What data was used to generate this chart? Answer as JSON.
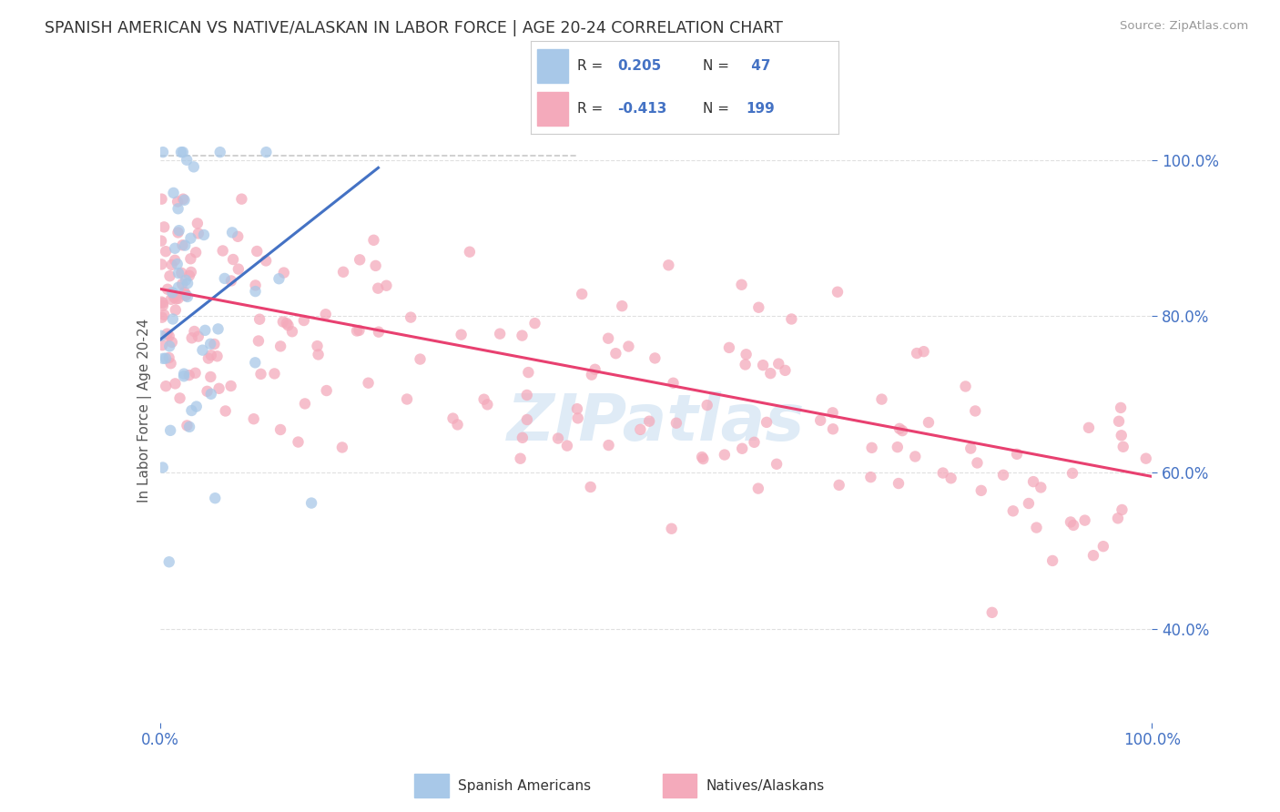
{
  "title": "SPANISH AMERICAN VS NATIVE/ALASKAN IN LABOR FORCE | AGE 20-24 CORRELATION CHART",
  "source": "Source: ZipAtlas.com",
  "ylabel": "In Labor Force | Age 20-24",
  "xlim": [
    0.0,
    1.0
  ],
  "ylim": [
    0.28,
    1.08
  ],
  "blue_color": "#A8C8E8",
  "pink_color": "#F4AABB",
  "trendline_blue": "#4472C4",
  "trendline_pink": "#E84070",
  "dashed_color": "#BBBBBB",
  "watermark": "ZIPatlas",
  "background_color": "#FFFFFF",
  "grid_color": "#DDDDDD",
  "tick_color": "#4472C4",
  "title_color": "#333333",
  "source_color": "#999999",
  "ylabel_color": "#555555",
  "blue_trendline_x": [
    0.0,
    0.22
  ],
  "blue_trendline_y": [
    0.77,
    0.99
  ],
  "pink_trendline_x": [
    0.0,
    1.0
  ],
  "pink_trendline_y": [
    0.835,
    0.595
  ],
  "dashed_line_x": [
    0.0,
    0.45
  ],
  "dashed_line_y": [
    1.005,
    1.005
  ],
  "yticks": [
    0.4,
    0.6,
    0.8,
    1.0
  ],
  "ytick_labels": [
    "40.0%",
    "60.0%",
    "80.0%",
    "100.0%"
  ],
  "xtick_labels": [
    "0.0%",
    "100.0%"
  ],
  "legend_r1": "R = ",
  "legend_v1": "0.205",
  "legend_n1_label": "N = ",
  "legend_n1": " 47",
  "legend_r2": "R = ",
  "legend_v2": "-0.413",
  "legend_n2_label": "N = ",
  "legend_n2": "199"
}
